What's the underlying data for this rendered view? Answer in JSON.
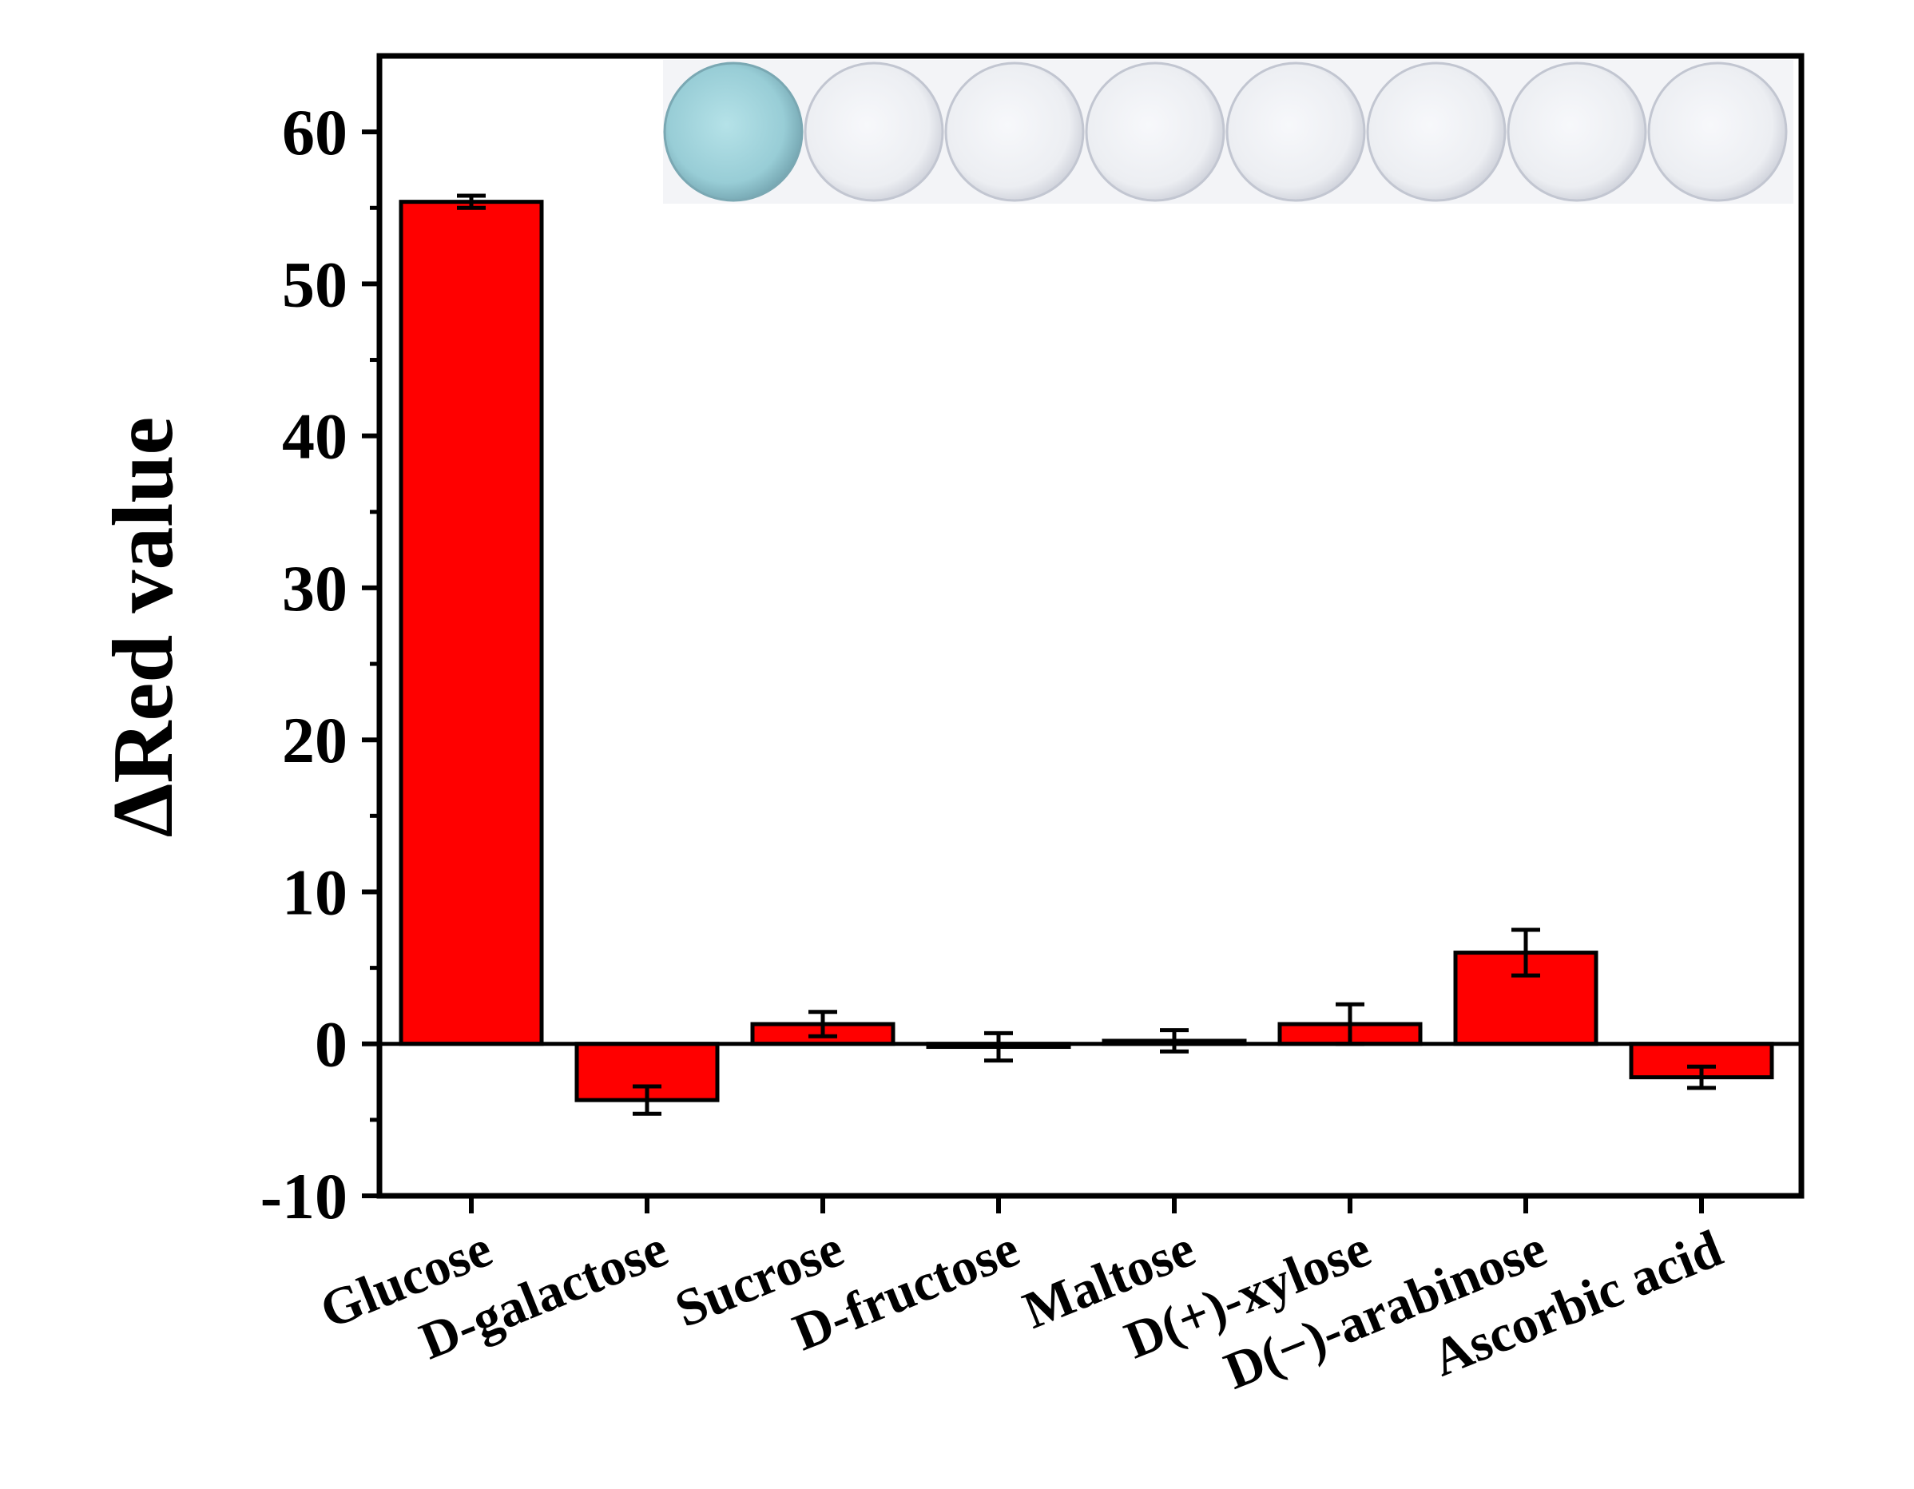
{
  "chart_data": {
    "type": "bar",
    "categories": [
      "Glucose",
      "D-galactose",
      "Sucrose",
      "D-fructose",
      "Maltose",
      "D(+)-xylose",
      "D(−)-arabinose",
      "Ascorbic acid"
    ],
    "values": [
      55.4,
      -3.7,
      1.3,
      -0.2,
      0.2,
      1.3,
      6.0,
      -2.2
    ],
    "errors": [
      0.4,
      0.9,
      0.8,
      0.9,
      0.7,
      1.3,
      1.5,
      0.7
    ],
    "xlabel": "",
    "ylabel": "ΔRed value",
    "ylim": [
      -10,
      65
    ],
    "yticks": [
      -10,
      0,
      10,
      20,
      30,
      40,
      50,
      60
    ],
    "grid": false,
    "legend": "none",
    "inset": "photo strip of eight test-paper discs above the bars; first disc blue, others white",
    "colors": {
      "bar": "#ff0000",
      "inset_first": "#9fd3dc",
      "inset_others": "#e9ebf0"
    }
  }
}
